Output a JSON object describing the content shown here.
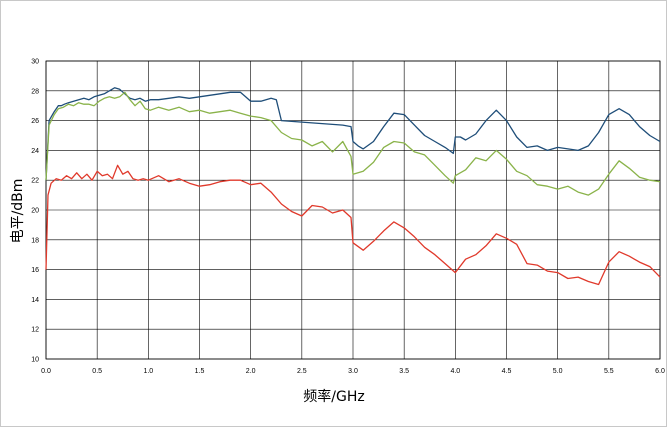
{
  "chart_data": {
    "type": "line",
    "title": "",
    "xlabel": "频率/GHz",
    "ylabel": "电平/dBm",
    "xlim": [
      0,
      6
    ],
    "ylim": [
      10,
      30
    ],
    "xticks": [
      "0.0",
      "0.5",
      "1.0",
      "1.5",
      "2.0",
      "2.5",
      "3.0",
      "3.5",
      "4.0",
      "4.5",
      "5.0",
      "5.5",
      "6.0"
    ],
    "yticks": [
      "10",
      "12",
      "14",
      "16",
      "18",
      "20",
      "22",
      "24",
      "26",
      "28",
      "30"
    ],
    "grid": true,
    "legend": "none",
    "colors": {
      "blue": "#1f4e79",
      "green": "#8ab34a",
      "red": "#e0392b"
    },
    "series": [
      {
        "color": "#1f4e79",
        "x": [
          0,
          0.03,
          0.08,
          0.12,
          0.15,
          0.18,
          0.22,
          0.27,
          0.32,
          0.37,
          0.42,
          0.47,
          0.52,
          0.57,
          0.62,
          0.67,
          0.72,
          0.77,
          0.82,
          0.87,
          0.92,
          0.97,
          1.02,
          1.1,
          1.2,
          1.3,
          1.4,
          1.5,
          1.6,
          1.7,
          1.8,
          1.9,
          1.95,
          2.0,
          2.1,
          2.2,
          2.25,
          2.3,
          2.5,
          2.7,
          2.9,
          2.98,
          3.0,
          3.05,
          3.1,
          3.2,
          3.3,
          3.4,
          3.5,
          3.6,
          3.7,
          3.8,
          3.9,
          3.98,
          4.0,
          4.05,
          4.1,
          4.2,
          4.3,
          4.4,
          4.5,
          4.6,
          4.7,
          4.8,
          4.9,
          5.0,
          5.1,
          5.2,
          5.3,
          5.4,
          5.5,
          5.6,
          5.7,
          5.8,
          5.9,
          6.0
        ],
        "y": [
          22.0,
          26.0,
          26.6,
          27.0,
          27.0,
          27.1,
          27.2,
          27.3,
          27.4,
          27.5,
          27.4,
          27.6,
          27.7,
          27.8,
          28.0,
          28.2,
          28.1,
          27.8,
          27.5,
          27.4,
          27.5,
          27.3,
          27.4,
          27.4,
          27.5,
          27.6,
          27.5,
          27.6,
          27.7,
          27.8,
          27.9,
          27.9,
          27.6,
          27.3,
          27.3,
          27.5,
          27.4,
          26.0,
          25.9,
          25.8,
          25.7,
          25.6,
          24.6,
          24.3,
          24.1,
          24.6,
          25.6,
          26.5,
          26.4,
          25.7,
          25.0,
          24.6,
          24.2,
          23.8,
          24.9,
          24.9,
          24.7,
          25.1,
          26.0,
          26.7,
          26.0,
          24.9,
          24.2,
          24.3,
          24.0,
          24.2,
          24.1,
          24.0,
          24.3,
          25.2,
          26.4,
          26.8,
          26.4,
          25.6,
          25.0,
          24.6
        ]
      },
      {
        "color": "#8ab34a",
        "x": [
          0,
          0.03,
          0.08,
          0.12,
          0.17,
          0.22,
          0.27,
          0.32,
          0.37,
          0.42,
          0.47,
          0.52,
          0.57,
          0.62,
          0.67,
          0.72,
          0.77,
          0.82,
          0.87,
          0.92,
          0.97,
          1.02,
          1.1,
          1.2,
          1.3,
          1.4,
          1.5,
          1.6,
          1.7,
          1.8,
          1.9,
          2.0,
          2.1,
          2.2,
          2.3,
          2.4,
          2.5,
          2.6,
          2.7,
          2.8,
          2.9,
          2.98,
          3.0,
          3.1,
          3.2,
          3.3,
          3.4,
          3.5,
          3.6,
          3.7,
          3.8,
          3.9,
          3.98,
          4.0,
          4.1,
          4.2,
          4.3,
          4.4,
          4.5,
          4.6,
          4.7,
          4.8,
          4.9,
          5.0,
          5.1,
          5.2,
          5.3,
          5.4,
          5.5,
          5.6,
          5.7,
          5.8,
          5.9,
          6.0
        ],
        "y": [
          22.0,
          25.7,
          26.4,
          26.8,
          26.9,
          27.1,
          27.0,
          27.2,
          27.1,
          27.1,
          27.0,
          27.3,
          27.5,
          27.6,
          27.5,
          27.6,
          27.9,
          27.4,
          27.0,
          27.3,
          26.8,
          26.7,
          26.9,
          26.7,
          26.9,
          26.6,
          26.7,
          26.5,
          26.6,
          26.7,
          26.5,
          26.3,
          26.2,
          26.0,
          25.2,
          24.8,
          24.7,
          24.3,
          24.6,
          23.9,
          24.6,
          23.6,
          22.4,
          22.6,
          23.2,
          24.2,
          24.6,
          24.5,
          23.9,
          23.7,
          23.0,
          22.3,
          21.8,
          22.3,
          22.7,
          23.5,
          23.3,
          24.0,
          23.4,
          22.6,
          22.3,
          21.7,
          21.6,
          21.4,
          21.6,
          21.2,
          21.0,
          21.4,
          22.4,
          23.3,
          22.8,
          22.2,
          22.0,
          21.9
        ]
      },
      {
        "color": "#e0392b",
        "x": [
          0,
          0.02,
          0.05,
          0.1,
          0.15,
          0.2,
          0.25,
          0.3,
          0.35,
          0.4,
          0.45,
          0.5,
          0.55,
          0.6,
          0.65,
          0.7,
          0.75,
          0.8,
          0.85,
          0.9,
          0.95,
          1.0,
          1.1,
          1.2,
          1.3,
          1.4,
          1.5,
          1.6,
          1.7,
          1.8,
          1.9,
          2.0,
          2.1,
          2.2,
          2.3,
          2.4,
          2.5,
          2.6,
          2.7,
          2.8,
          2.9,
          2.98,
          3.0,
          3.1,
          3.2,
          3.3,
          3.4,
          3.5,
          3.6,
          3.7,
          3.8,
          3.9,
          4.0,
          4.1,
          4.2,
          4.3,
          4.4,
          4.5,
          4.6,
          4.7,
          4.8,
          4.9,
          5.0,
          5.1,
          5.2,
          5.3,
          5.4,
          5.5,
          5.6,
          5.7,
          5.8,
          5.9,
          6.0
        ],
        "y": [
          16.0,
          21.0,
          21.8,
          22.1,
          22.0,
          22.3,
          22.1,
          22.5,
          22.1,
          22.4,
          22.0,
          22.6,
          22.3,
          22.4,
          22.1,
          23.0,
          22.4,
          22.6,
          22.1,
          22.0,
          22.1,
          22.0,
          22.3,
          21.9,
          22.1,
          21.8,
          21.6,
          21.7,
          21.9,
          22.0,
          22.0,
          21.7,
          21.8,
          21.2,
          20.4,
          19.9,
          19.6,
          20.3,
          20.2,
          19.8,
          20.0,
          19.5,
          17.8,
          17.3,
          17.9,
          18.6,
          19.2,
          18.8,
          18.2,
          17.5,
          17.0,
          16.4,
          15.8,
          16.7,
          17.0,
          17.6,
          18.4,
          18.1,
          17.7,
          16.4,
          16.3,
          15.9,
          15.8,
          15.4,
          15.5,
          15.2,
          15.0,
          16.5,
          17.2,
          16.9,
          16.5,
          16.2,
          15.5
        ]
      }
    ]
  }
}
